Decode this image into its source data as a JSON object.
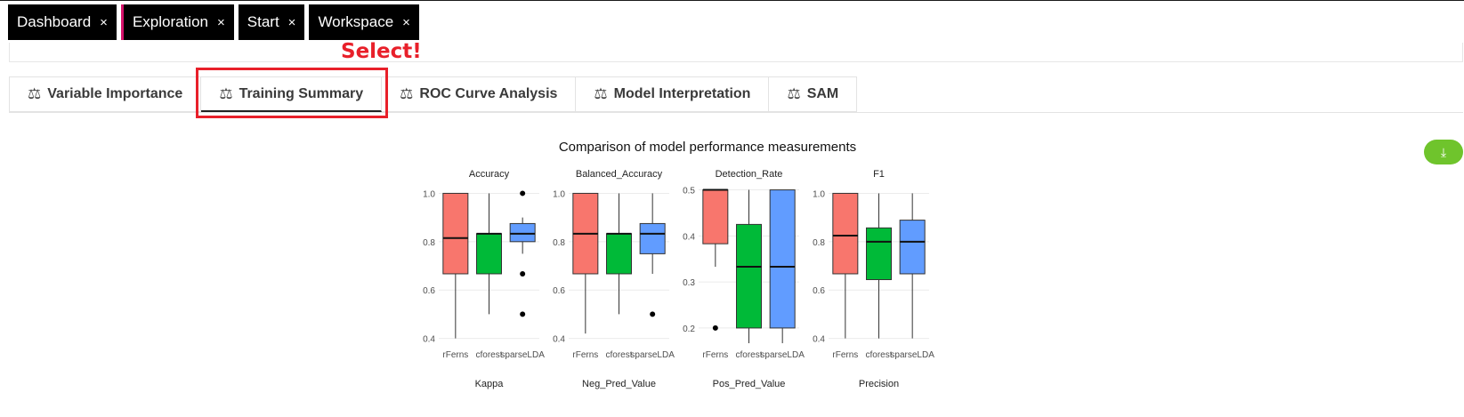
{
  "top_tabs": [
    {
      "label": "Dashboard",
      "close": "×"
    },
    {
      "label": "Exploration",
      "close": "×"
    },
    {
      "label": "Start",
      "close": "×"
    },
    {
      "label": "Workspace",
      "close": "×"
    }
  ],
  "callout": "Select!",
  "tool_tabs": [
    {
      "label": "Variable Importance",
      "icon": "balance-scale-icon"
    },
    {
      "label": "Training Summary",
      "icon": "balance-scale-icon",
      "active": true
    },
    {
      "label": "ROC Curve Analysis",
      "icon": "balance-scale-icon"
    },
    {
      "label": "Model Interpretation",
      "icon": "balance-scale-icon"
    },
    {
      "label": "SAM",
      "icon": "balance-scale-icon"
    }
  ],
  "scale_glyph": "⚖",
  "download_icon": "⤓",
  "colors": {
    "rFerns": "#F8766D",
    "cforest": "#00BA38",
    "sparseLDA": "#619CFF",
    "accent": "#6fc42c",
    "callout": "#e8202a"
  },
  "chart_data": {
    "type": "boxplot",
    "title": "Comparison of model performance measurements",
    "categories": [
      "rFerns",
      "cforest",
      "sparseLDA"
    ],
    "panels": [
      {
        "name": "Accuracy",
        "ylim": [
          0.38,
          1.02
        ],
        "ticks": [
          0.4,
          0.6,
          0.8,
          1.0
        ],
        "tick_labels": [
          "0.4",
          "0.6",
          "0.8",
          "1.0"
        ],
        "boxes": [
          {
            "min": 0.4,
            "q1": 0.667,
            "median": 0.815,
            "q3": 1.0,
            "max": 1.0,
            "outliers": []
          },
          {
            "min": 0.5,
            "q1": 0.667,
            "median": 0.833,
            "q3": 0.833,
            "max": 1.0,
            "outliers": []
          },
          {
            "min": 0.75,
            "q1": 0.8,
            "median": 0.833,
            "q3": 0.875,
            "max": 0.9,
            "outliers": [
              1.0,
              0.667,
              0.5
            ]
          }
        ]
      },
      {
        "name": "Balanced_Accuracy",
        "ylim": [
          0.38,
          1.02
        ],
        "ticks": [
          0.4,
          0.6,
          0.8,
          1.0
        ],
        "tick_labels": [
          "0.4",
          "0.6",
          "0.8",
          "1.0"
        ],
        "boxes": [
          {
            "min": 0.42,
            "q1": 0.667,
            "median": 0.833,
            "q3": 1.0,
            "max": 1.0,
            "outliers": []
          },
          {
            "min": 0.5,
            "q1": 0.667,
            "median": 0.833,
            "q3": 0.833,
            "max": 1.0,
            "outliers": []
          },
          {
            "min": 0.667,
            "q1": 0.75,
            "median": 0.833,
            "q3": 0.875,
            "max": 1.0,
            "outliers": [
              0.5
            ]
          }
        ]
      },
      {
        "name": "Detection_Rate",
        "ylim": [
          0.167,
          0.503
        ],
        "ticks": [
          0.2,
          0.3,
          0.4,
          0.5
        ],
        "tick_labels": [
          "0.2",
          "0.3",
          "0.4",
          "0.5"
        ],
        "boxes": [
          {
            "min": 0.333,
            "q1": 0.383,
            "median": 0.5,
            "q3": 0.5,
            "max": 0.5,
            "outliers": [
              0.2
            ]
          },
          {
            "min": 0.167,
            "q1": 0.2,
            "median": 0.333,
            "q3": 0.425,
            "max": 0.5,
            "outliers": []
          },
          {
            "min": 0.167,
            "q1": 0.2,
            "median": 0.333,
            "q3": 0.5,
            "max": 0.5,
            "outliers": []
          }
        ]
      },
      {
        "name": "F1",
        "ylim": [
          0.38,
          1.02
        ],
        "ticks": [
          0.4,
          0.6,
          0.8,
          1.0
        ],
        "tick_labels": [
          "0.4",
          "0.6",
          "0.8",
          "1.0"
        ],
        "boxes": [
          {
            "min": 0.4,
            "q1": 0.667,
            "median": 0.825,
            "q3": 1.0,
            "max": 1.0,
            "outliers": []
          },
          {
            "min": 0.4,
            "q1": 0.643,
            "median": 0.8,
            "q3": 0.857,
            "max": 1.0,
            "outliers": []
          },
          {
            "min": 0.4,
            "q1": 0.667,
            "median": 0.8,
            "q3": 0.889,
            "max": 1.0,
            "outliers": []
          }
        ]
      }
    ],
    "next_row_panels": [
      "Kappa",
      "Neg_Pred_Value",
      "Pos_Pred_Value",
      "Precision"
    ]
  }
}
